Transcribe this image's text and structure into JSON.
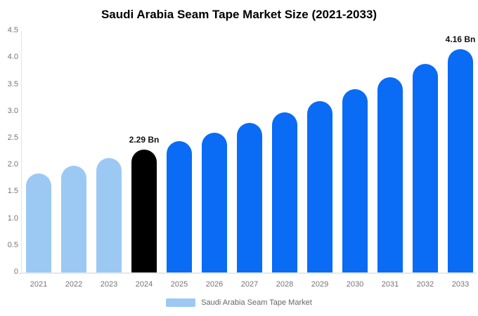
{
  "title": "Saudi Arabia Seam Tape Market Size (2021-2033)",
  "colors": {
    "historical_bar": "#9cc9f4",
    "highlight_bar": "#000000",
    "forecast_bar": "#0a6bf5",
    "axis_line": "#e3e3e3",
    "axis_text": "#757575",
    "legend_text": "#666666",
    "title_text": "#000000"
  },
  "chart_data": {
    "type": "bar",
    "title": "Saudi Arabia Seam Tape Market Size (2021-2033)",
    "xlabel": "",
    "ylabel": "",
    "unit": "Bn",
    "categories": [
      "2021",
      "2022",
      "2023",
      "2024",
      "2025",
      "2026",
      "2027",
      "2028",
      "2029",
      "2030",
      "2031",
      "2032",
      "2033"
    ],
    "values": [
      1.85,
      1.99,
      2.13,
      2.29,
      2.45,
      2.61,
      2.79,
      2.99,
      3.19,
      3.41,
      3.64,
      3.89,
      4.16
    ],
    "bar_colors": [
      "#9cc9f4",
      "#9cc9f4",
      "#9cc9f4",
      "#000000",
      "#0a6bf5",
      "#0a6bf5",
      "#0a6bf5",
      "#0a6bf5",
      "#0a6bf5",
      "#0a6bf5",
      "#0a6bf5",
      "#0a6bf5",
      "#0a6bf5"
    ],
    "ylim": [
      0,
      4.5
    ],
    "y_ticks": [
      "0",
      "0.5",
      "1.0",
      "1.5",
      "2.0",
      "2.5",
      "3.0",
      "3.5",
      "4.0",
      "4.5"
    ],
    "grid": false,
    "annotations": [
      {
        "category": "2024",
        "text": "2.29 Bn"
      },
      {
        "category": "2033",
        "text": "4.16 Bn"
      }
    ],
    "legend": {
      "position": "bottom",
      "label": "Saudi Arabia Seam Tape Market",
      "swatch_color": "#9cc9f4"
    }
  }
}
